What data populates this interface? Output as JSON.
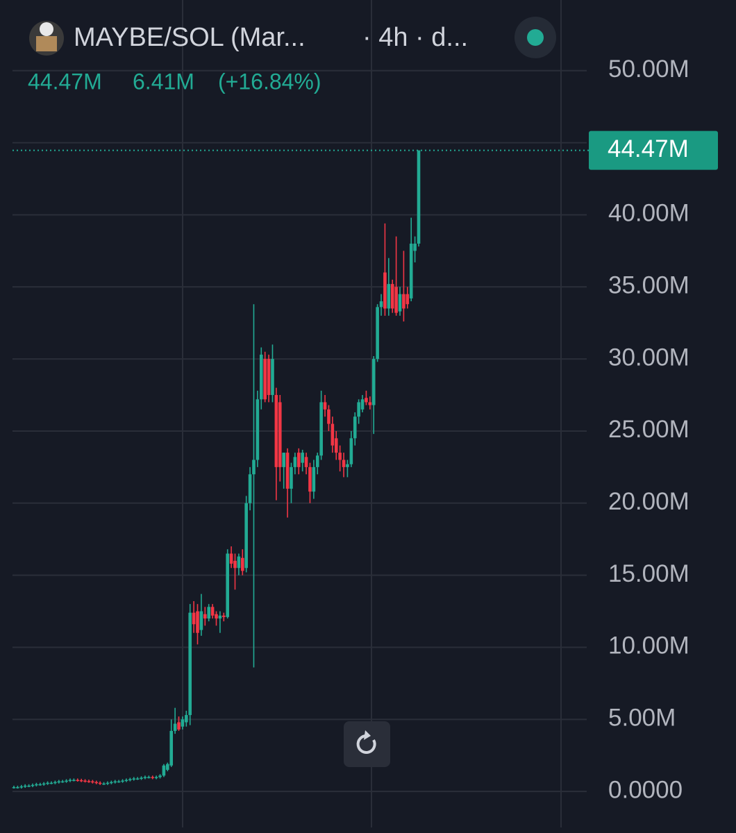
{
  "header": {
    "symbol": "MAYBE/SOL (Mar...",
    "interval": "· 4h · d...",
    "stats": [
      "44.47M",
      "6.41M",
      "(+16.84%)"
    ]
  },
  "chart_data": {
    "type": "candlestick",
    "up_color": "#22ab94",
    "down_color": "#f23645",
    "ylim": [
      -2.4,
      54.9
    ],
    "yticks": [
      {
        "value": 0,
        "label": "0.0000"
      },
      {
        "value": 5,
        "label": "5.00M"
      },
      {
        "value": 10,
        "label": "10.00M"
      },
      {
        "value": 15,
        "label": "15.00M"
      },
      {
        "value": 20,
        "label": "20.00M"
      },
      {
        "value": 25,
        "label": "25.00M"
      },
      {
        "value": 30,
        "label": "30.00M"
      },
      {
        "value": 35,
        "label": "35.00M"
      },
      {
        "value": 40,
        "label": "40.00M"
      },
      {
        "value": 45,
        "label": ""
      },
      {
        "value": 50,
        "label": "50.00M"
      }
    ],
    "grid": true,
    "last_price": {
      "value": 44.47,
      "label": "44.47M"
    },
    "open": [
      0.3,
      0.3,
      0.3,
      0.35,
      0.4,
      0.4,
      0.45,
      0.5,
      0.5,
      0.55,
      0.6,
      0.6,
      0.65,
      0.7,
      0.7,
      0.75,
      0.8,
      0.8,
      0.78,
      0.75,
      0.72,
      0.7,
      0.65,
      0.6,
      0.55,
      0.55,
      0.6,
      0.65,
      0.7,
      0.7,
      0.75,
      0.8,
      0.85,
      0.9,
      0.9,
      0.95,
      1.0,
      1.0,
      0.95,
      1.0,
      1.1,
      1.5,
      1.8,
      4.2,
      4.8,
      4.5,
      4.8,
      5.3,
      12.4,
      12.5,
      11.2,
      12.3,
      12.0,
      12.8,
      12.3,
      12.0,
      12.2,
      12.1,
      16.5,
      16.0,
      15.5,
      16.2,
      15.5,
      20.0,
      22.0,
      23.0,
      27.2,
      30.0,
      30.0,
      27.5,
      27.5,
      27.0,
      22.5,
      23.5,
      21.0,
      22.5,
      23.5,
      22.8,
      23.2,
      22.5,
      20.8,
      22.5,
      23.3,
      27.0,
      26.5,
      25.5,
      24.5,
      23.5,
      23.0,
      22.5,
      22.7,
      24.5,
      26.0,
      26.5,
      27.3,
      27.0,
      26.8,
      30.0,
      33.6,
      36.0,
      33.5,
      35.2,
      35.0,
      33.3,
      34.5,
      34.5,
      34.2,
      37.5,
      38.0
    ],
    "high": [
      0.4,
      0.4,
      0.45,
      0.5,
      0.5,
      0.55,
      0.6,
      0.6,
      0.65,
      0.7,
      0.7,
      0.75,
      0.8,
      0.8,
      0.85,
      0.9,
      0.9,
      0.9,
      0.88,
      0.85,
      0.82,
      0.8,
      0.75,
      0.7,
      0.65,
      0.7,
      0.75,
      0.8,
      0.8,
      0.85,
      0.9,
      0.95,
      1.0,
      1.0,
      1.05,
      1.1,
      1.1,
      1.1,
      1.1,
      1.2,
      1.9,
      2.0,
      5.0,
      5.8,
      5.2,
      5.2,
      5.6,
      13.0,
      13.2,
      13.0,
      13.7,
      12.8,
      13.0,
      13.0,
      12.5,
      12.5,
      12.4,
      16.8,
      17.0,
      16.5,
      16.5,
      16.8,
      20.5,
      22.5,
      33.8,
      27.8,
      30.8,
      30.5,
      30.3,
      31.0,
      28.0,
      27.5,
      23.5,
      23.8,
      22.8,
      23.5,
      23.8,
      23.7,
      23.5,
      22.8,
      23.0,
      23.5,
      27.8,
      27.5,
      26.8,
      26.0,
      25.0,
      24.0,
      23.5,
      23.0,
      25.0,
      26.3,
      27.2,
      27.5,
      27.8,
      27.4,
      30.2,
      33.8,
      34.5,
      39.4,
      37.0,
      35.5,
      38.5,
      35.0,
      37.5,
      35.0,
      39.8,
      38.5,
      44.47
    ],
    "low": [
      0.2,
      0.2,
      0.2,
      0.25,
      0.3,
      0.3,
      0.35,
      0.4,
      0.4,
      0.45,
      0.5,
      0.5,
      0.55,
      0.6,
      0.6,
      0.65,
      0.7,
      0.68,
      0.65,
      0.62,
      0.6,
      0.55,
      0.5,
      0.45,
      0.45,
      0.45,
      0.5,
      0.55,
      0.6,
      0.6,
      0.65,
      0.7,
      0.75,
      0.8,
      0.8,
      0.85,
      0.9,
      0.85,
      0.85,
      0.9,
      1.0,
      1.4,
      1.7,
      4.0,
      4.2,
      4.3,
      4.5,
      4.6,
      11.0,
      10.2,
      10.8,
      11.5,
      11.8,
      12.0,
      11.5,
      11.0,
      11.8,
      12.0,
      15.5,
      14.0,
      15.0,
      15.0,
      15.2,
      19.5,
      8.6,
      22.5,
      26.5,
      27.0,
      27.0,
      27.0,
      20.2,
      21.5,
      21.0,
      19.0,
      20.0,
      22.0,
      22.0,
      22.2,
      22.0,
      20.0,
      20.3,
      22.0,
      23.0,
      26.0,
      25.0,
      23.5,
      23.0,
      22.2,
      21.8,
      21.8,
      22.5,
      24.0,
      25.5,
      26.3,
      26.8,
      26.5,
      24.8,
      29.8,
      33.0,
      33.0,
      33.0,
      33.2,
      33.0,
      33.0,
      32.6,
      33.5,
      34.0,
      36.7,
      37.8
    ],
    "close": [
      0.3,
      0.3,
      0.35,
      0.4,
      0.4,
      0.45,
      0.5,
      0.5,
      0.55,
      0.6,
      0.6,
      0.65,
      0.7,
      0.7,
      0.75,
      0.8,
      0.8,
      0.78,
      0.75,
      0.72,
      0.7,
      0.65,
      0.6,
      0.55,
      0.55,
      0.6,
      0.65,
      0.7,
      0.7,
      0.75,
      0.8,
      0.85,
      0.9,
      0.9,
      0.95,
      1.0,
      1.0,
      0.95,
      1.0,
      1.1,
      1.8,
      1.9,
      4.2,
      4.7,
      4.3,
      5.0,
      5.3,
      12.4,
      11.6,
      11.0,
      12.5,
      12.0,
      12.8,
      12.2,
      12.0,
      12.2,
      12.1,
      16.5,
      15.8,
      15.5,
      16.3,
      15.3,
      20.0,
      22.0,
      23.0,
      27.2,
      30.3,
      27.2,
      27.5,
      30.0,
      22.5,
      22.5,
      23.5,
      21.0,
      22.5,
      23.2,
      22.5,
      23.5,
      22.5,
      20.8,
      22.5,
      23.3,
      27.0,
      26.5,
      25.5,
      24.0,
      23.5,
      23.0,
      22.5,
      22.7,
      24.5,
      26.0,
      27.0,
      27.2,
      27.0,
      26.8,
      30.0,
      33.6,
      34.0,
      33.5,
      35.2,
      33.5,
      33.2,
      34.5,
      33.5,
      33.8,
      38.0,
      38.0,
      44.47
    ]
  }
}
